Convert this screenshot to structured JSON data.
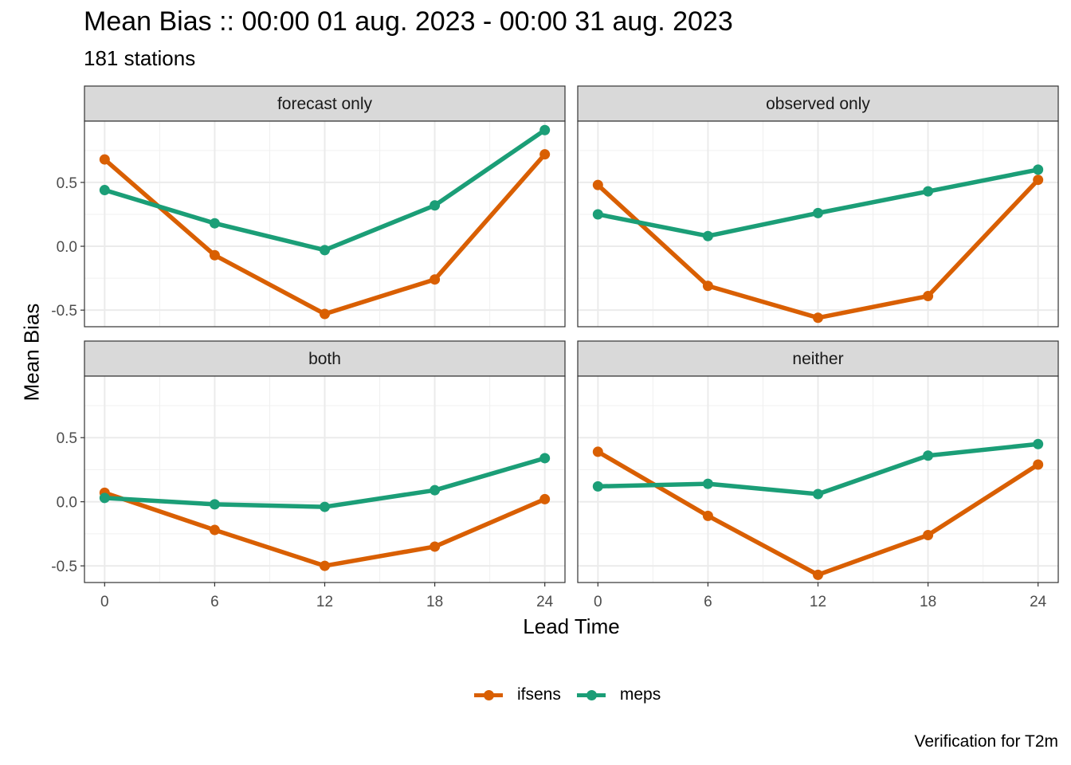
{
  "title": "Mean Bias :: 00:00 01 aug. 2023 - 00:00 31 aug. 2023",
  "subtitle": "181 stations",
  "caption": "Verification for T2m",
  "chart_data": {
    "type": "line",
    "xlabel": "Lead Time",
    "ylabel": "Mean Bias",
    "x": [
      0,
      6,
      12,
      18,
      24
    ],
    "x_ticks": [
      "0",
      "6",
      "12",
      "18",
      "24"
    ],
    "y_ticks": [
      "-0.5",
      "0.0",
      "0.5"
    ],
    "xlim": [
      -1.1,
      25.1
    ],
    "ylim": [
      -0.63,
      0.98
    ],
    "grid": true,
    "legend_position": "bottom",
    "colors": {
      "ifsens": "#D95F02",
      "meps": "#1B9E77"
    },
    "panels": [
      {
        "name": "forecast only",
        "series": [
          {
            "name": "ifsens",
            "values": [
              0.68,
              -0.07,
              -0.53,
              -0.26,
              0.72
            ]
          },
          {
            "name": "meps",
            "values": [
              0.44,
              0.18,
              -0.03,
              0.32,
              0.91
            ]
          }
        ]
      },
      {
        "name": "observed only",
        "series": [
          {
            "name": "ifsens",
            "values": [
              0.48,
              -0.31,
              -0.56,
              -0.39,
              0.52
            ]
          },
          {
            "name": "meps",
            "values": [
              0.25,
              0.08,
              0.26,
              0.43,
              0.6
            ]
          }
        ]
      },
      {
        "name": "both",
        "series": [
          {
            "name": "ifsens",
            "values": [
              0.07,
              -0.22,
              -0.5,
              -0.35,
              0.02
            ]
          },
          {
            "name": "meps",
            "values": [
              0.03,
              -0.02,
              -0.04,
              0.09,
              0.34
            ]
          }
        ]
      },
      {
        "name": "neither",
        "series": [
          {
            "name": "ifsens",
            "values": [
              0.39,
              -0.11,
              -0.57,
              -0.26,
              0.29
            ]
          },
          {
            "name": "meps",
            "values": [
              0.12,
              0.14,
              0.06,
              0.36,
              0.45
            ]
          }
        ]
      }
    ]
  }
}
